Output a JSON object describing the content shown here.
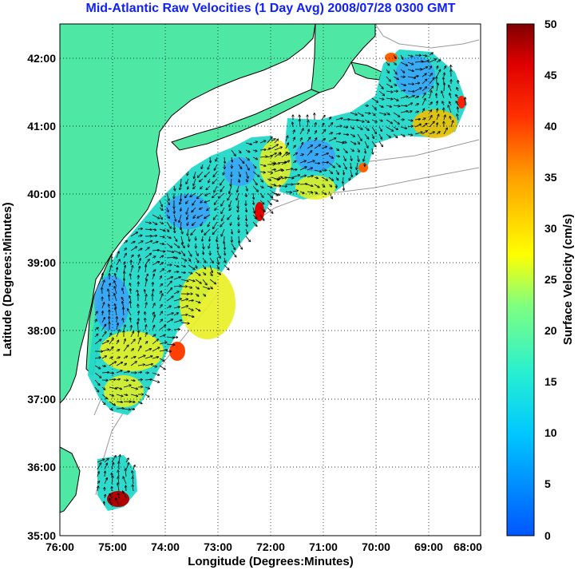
{
  "title": "Mid-Atlantic Raw Velocities (1 Day Avg) 2008/07/28 0300 GMT",
  "map": {
    "xlabel": "Longitude (Degrees:Minutes)",
    "ylabel": "Latitude (Degrees:Minutes)",
    "x_ticks": [
      "76:00",
      "75:00",
      "74:00",
      "73:00",
      "72:00",
      "71:00",
      "70:00",
      "69:00",
      "68:00"
    ],
    "y_ticks": [
      "42:00",
      "41:00",
      "40:00",
      "39:00",
      "38:00",
      "37:00",
      "36:00",
      "35:00"
    ],
    "grid": "dotted",
    "land_color": "#4ee8a4",
    "coast_color": "#000000",
    "bathymetry_color": "#999999"
  },
  "colorbar": {
    "label": "Surface Velocity (cm/s)",
    "ticks": [
      "50",
      "45",
      "40",
      "35",
      "30",
      "25",
      "20",
      "15",
      "10",
      "5",
      "0"
    ],
    "min": 0,
    "max": 50,
    "colormap": "jet"
  }
}
